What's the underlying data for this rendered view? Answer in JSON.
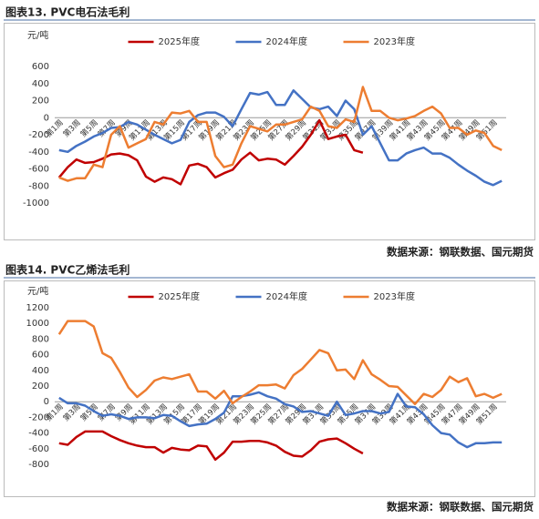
{
  "chart_data": [
    {
      "type": "line",
      "title": "图表13. PVC电石法毛利",
      "y_label": "元/吨",
      "source": "数据来源：钢联数据、国元期货",
      "categories": [
        "第1周",
        null,
        "第3周",
        null,
        "第5周",
        null,
        "第7周",
        null,
        "第9周",
        null,
        "第11周",
        null,
        "第13周",
        null,
        "第15周",
        null,
        "第17周",
        null,
        "第19周",
        null,
        "第21周",
        null,
        "第23周",
        null,
        "第25周",
        null,
        "第27周",
        null,
        "第29周",
        null,
        "第31周",
        null,
        "第33周",
        null,
        "第35周",
        null,
        "第37周",
        null,
        "第39周",
        null,
        "第41周",
        null,
        "第43周",
        null,
        "第45周",
        null,
        "第47周",
        null,
        "第49周",
        null,
        "第51周",
        null
      ],
      "series": [
        {
          "name": "2025年度",
          "color": "#c00000",
          "values": [
            -700,
            -580,
            -490,
            -530,
            -520,
            -480,
            -430,
            -420,
            -440,
            -500,
            -690,
            -750,
            -700,
            -720,
            -780,
            -560,
            -540,
            -580,
            -700,
            -650,
            -610,
            -490,
            -410,
            -500,
            -480,
            -490,
            -550,
            -450,
            -340,
            -200,
            -30,
            -250,
            -220,
            -200,
            -380,
            -410,
            null,
            null,
            null,
            null,
            null,
            null,
            null,
            null,
            null,
            null,
            null,
            null,
            null,
            null,
            null,
            null
          ]
        },
        {
          "name": "2024年度",
          "color": "#4472c4",
          "values": [
            -380,
            -400,
            -330,
            -280,
            -220,
            -180,
            -120,
            -110,
            -50,
            -80,
            -140,
            -200,
            -250,
            -300,
            -260,
            -50,
            30,
            60,
            60,
            10,
            -100,
            100,
            290,
            270,
            300,
            150,
            150,
            320,
            220,
            120,
            100,
            130,
            20,
            200,
            100,
            -200,
            -100,
            -300,
            -500,
            -500,
            -420,
            -380,
            -350,
            -420,
            -420,
            -470,
            -550,
            -620,
            -680,
            -750,
            -790,
            -740
          ]
        },
        {
          "name": "2023年度",
          "color": "#ed7d31",
          "values": [
            -700,
            -740,
            -710,
            -710,
            -550,
            -580,
            -200,
            -100,
            -350,
            -300,
            -250,
            -50,
            -80,
            60,
            50,
            80,
            -50,
            -50,
            -450,
            -580,
            -550,
            -300,
            -100,
            -130,
            -160,
            -80,
            -80,
            -50,
            -20,
            130,
            80,
            -100,
            -120,
            -20,
            -50,
            360,
            80,
            80,
            0,
            -30,
            -10,
            20,
            80,
            130,
            50,
            -120,
            -120,
            -200,
            -150,
            -180,
            -330,
            -380
          ]
        }
      ],
      "ylim": [
        -1000,
        600
      ],
      "yticks": [
        -1000,
        -800,
        -600,
        -400,
        -200,
        0,
        200,
        400,
        600
      ],
      "grid": false
    },
    {
      "type": "line",
      "title": "图表14. PVC乙烯法毛利",
      "y_label": "元/吨",
      "source": "数据来源：钢联数据、国元期货",
      "categories": [
        "第1周",
        null,
        "第3周",
        null,
        "第5周",
        null,
        "第7周",
        null,
        "第9周",
        null,
        "第11周",
        null,
        "第13周",
        null,
        "第15周",
        null,
        "第17周",
        null,
        "第19周",
        null,
        "第21周",
        null,
        "第23周",
        null,
        "第25周",
        null,
        "第27周",
        null,
        "第29周",
        null,
        "第31周",
        null,
        "第33周",
        null,
        "第35周",
        null,
        "第37周",
        null,
        "第39周",
        null,
        "第41周",
        null,
        "第43周",
        null,
        "第45周",
        null,
        "第47周",
        null,
        "第49周",
        null,
        "第51周",
        null
      ],
      "series": [
        {
          "name": "2025年度",
          "color": "#c00000",
          "values": [
            -530,
            -550,
            -450,
            -380,
            -380,
            -380,
            -440,
            -490,
            -530,
            -560,
            -580,
            -580,
            -650,
            -590,
            -610,
            -620,
            -560,
            -570,
            -740,
            -650,
            -510,
            -510,
            -500,
            -500,
            -520,
            -560,
            -640,
            -690,
            -700,
            -620,
            -510,
            -480,
            -470,
            -530,
            -600,
            -660,
            null,
            null,
            null,
            null,
            null,
            null,
            null,
            null,
            null,
            null,
            null,
            null,
            null,
            null,
            null,
            null
          ]
        },
        {
          "name": "2024年度",
          "color": "#4472c4",
          "values": [
            50,
            -20,
            -20,
            -50,
            -120,
            -180,
            -160,
            -180,
            -220,
            -200,
            -200,
            -210,
            -170,
            -180,
            -250,
            -310,
            -290,
            -280,
            -220,
            -140,
            70,
            70,
            90,
            120,
            70,
            40,
            -30,
            -60,
            -130,
            -120,
            -150,
            -180,
            0,
            -170,
            -150,
            -120,
            -120,
            -150,
            -130,
            100,
            -60,
            -70,
            -160,
            -300,
            -400,
            -420,
            -520,
            -580,
            -530,
            -530,
            -520,
            -520
          ]
        },
        {
          "name": "2023年度",
          "color": "#ed7d31",
          "values": [
            860,
            1030,
            1030,
            1030,
            960,
            620,
            560,
            380,
            180,
            60,
            150,
            270,
            310,
            290,
            320,
            350,
            130,
            130,
            40,
            140,
            -20,
            60,
            130,
            210,
            210,
            220,
            170,
            340,
            420,
            540,
            660,
            620,
            400,
            410,
            290,
            530,
            350,
            280,
            200,
            190,
            80,
            -30,
            100,
            60,
            150,
            320,
            250,
            300,
            70,
            100,
            50,
            100
          ]
        }
      ],
      "ylim": [
        -800,
        1200
      ],
      "yticks": [
        -800,
        -600,
        -400,
        -200,
        0,
        200,
        400,
        600,
        800,
        1000,
        1200
      ],
      "grid": false
    }
  ]
}
